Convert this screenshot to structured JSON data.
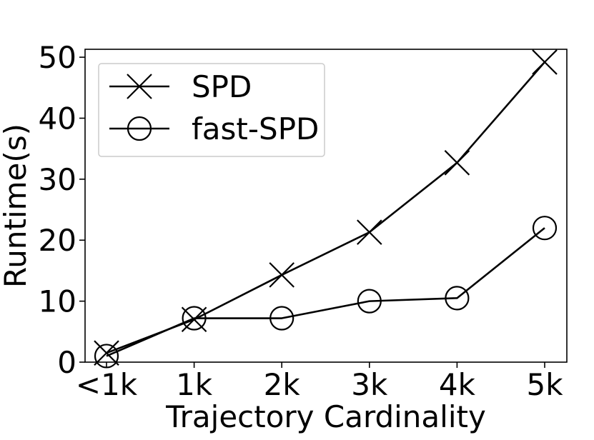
{
  "chart_data": {
    "type": "line",
    "title": "",
    "xlabel": "Trajectory Cardinality",
    "ylabel": "Runtime(s)",
    "categories": [
      "<1k",
      "1k",
      "2k",
      "3k",
      "4k",
      "5k"
    ],
    "ylim": [
      0,
      51.3
    ],
    "yticks": [
      0,
      10,
      20,
      30,
      40,
      50
    ],
    "grid": false,
    "legend_position": "upper-left",
    "series": [
      {
        "name": "SPD",
        "marker": "x",
        "color": "#000000",
        "values": [
          1.5,
          7.0,
          14.3,
          21.3,
          32.7,
          49.2
        ]
      },
      {
        "name": "fast-SPD",
        "marker": "circle",
        "color": "#000000",
        "values": [
          1.0,
          7.2,
          7.2,
          10.0,
          10.5,
          22.0
        ]
      }
    ]
  }
}
